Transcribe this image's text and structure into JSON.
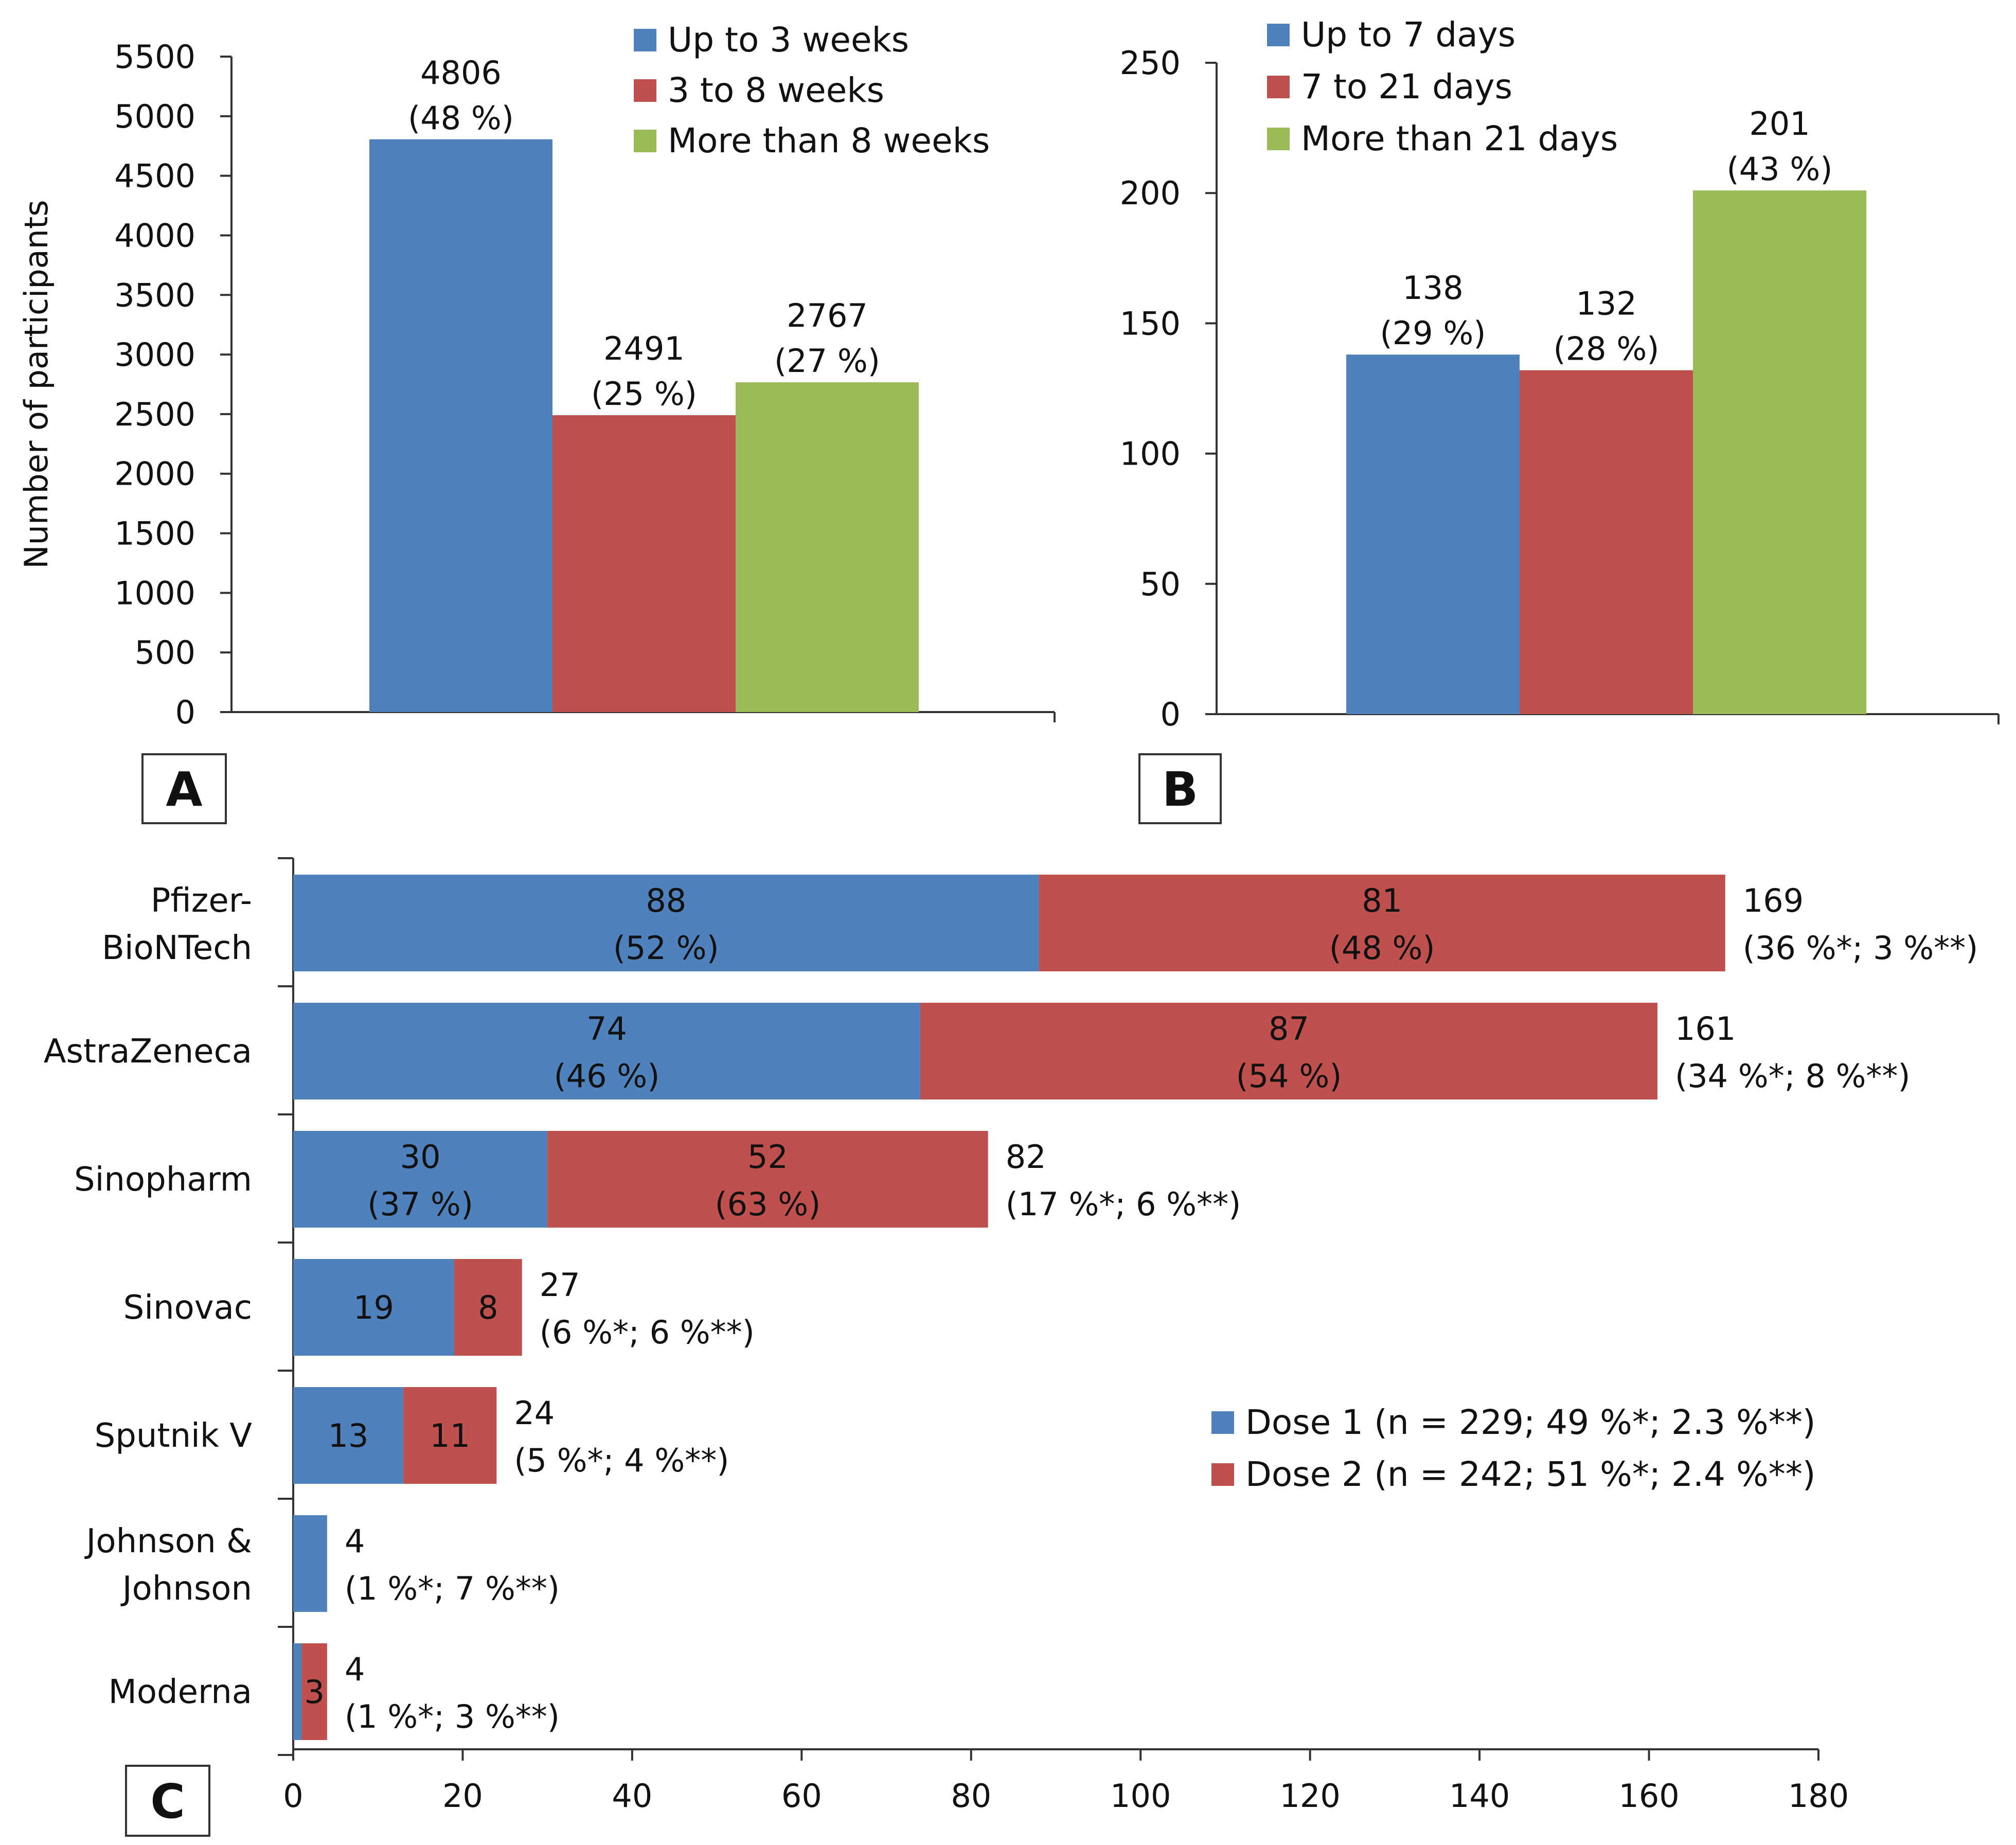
{
  "colors": {
    "blue": "#4f81bd",
    "red": "#c0504d",
    "green": "#9bbb59"
  },
  "chart_data": [
    {
      "panel": "A",
      "type": "bar",
      "ylabel": "Number of participants",
      "ylim": [
        0,
        5500
      ],
      "yticks": [
        "0",
        "500",
        "1000",
        "1500",
        "2000",
        "2500",
        "3000",
        "3500",
        "4000",
        "4500",
        "5000",
        "5500"
      ],
      "series": [
        {
          "name": "Up to 3 weeks",
          "value": 4806,
          "count_label": "4806",
          "pct_label": "(48 %)"
        },
        {
          "name": "3 to 8 weeks",
          "value": 2491,
          "count_label": "2491",
          "pct_label": "(25 %)"
        },
        {
          "name": "More than 8 weeks",
          "value": 2767,
          "count_label": "2767",
          "pct_label": "(27 %)"
        }
      ]
    },
    {
      "panel": "B",
      "type": "bar",
      "ylim": [
        0,
        250
      ],
      "yticks": [
        "0",
        "50",
        "100",
        "150",
        "200",
        "250"
      ],
      "series": [
        {
          "name": "Up to 7 days",
          "value": 138,
          "count_label": "138",
          "pct_label": "(29 %)"
        },
        {
          "name": "7 to 21 days",
          "value": 132,
          "count_label": "132",
          "pct_label": "(28 %)"
        },
        {
          "name": "More than 21 days",
          "value": 201,
          "count_label": "201",
          "pct_label": "(43 %)"
        }
      ]
    },
    {
      "panel": "C",
      "type": "bar",
      "orientation": "horizontal-stacked",
      "xlim": [
        0,
        180
      ],
      "xticks": [
        "0",
        "20",
        "40",
        "60",
        "80",
        "100",
        "120",
        "140",
        "160",
        "180"
      ],
      "series": [
        {
          "name": "Dose 1 (n = 229; 49 %*; 2.3 %**)"
        },
        {
          "name": "Dose 2 (n = 242; 51 %*; 2.4 %**)"
        }
      ],
      "categories": [
        {
          "name": [
            "Pfizer-",
            "BioNTech"
          ],
          "dose1": 88,
          "dose2": 81,
          "d1": [
            "88",
            "(52 %)"
          ],
          "d2": [
            "81",
            "(48 %)"
          ],
          "total": "169",
          "note": "(36 %*; 3 %**)"
        },
        {
          "name": [
            "AstraZeneca"
          ],
          "dose1": 74,
          "dose2": 87,
          "d1": [
            "74",
            "(46 %)"
          ],
          "d2": [
            "87",
            "(54 %)"
          ],
          "total": "161",
          "note": "(34 %*; 8 %**)"
        },
        {
          "name": [
            "Sinopharm"
          ],
          "dose1": 30,
          "dose2": 52,
          "d1": [
            "30",
            "(37 %)"
          ],
          "d2": [
            "52",
            "(63 %)"
          ],
          "total": "82",
          "note": "(17 %*; 6 %**)"
        },
        {
          "name": [
            "Sinovac"
          ],
          "dose1": 19,
          "dose2": 8,
          "d1": [
            "19"
          ],
          "d2": [
            "8"
          ],
          "total": "27",
          "note": "(6 %*; 6 %**)"
        },
        {
          "name": [
            "Sputnik V"
          ],
          "dose1": 13,
          "dose2": 11,
          "d1": [
            "13"
          ],
          "d2": [
            "11"
          ],
          "total": "24",
          "note": "(5 %*; 4 %**)"
        },
        {
          "name": [
            "Johnson &",
            "Johnson"
          ],
          "dose1": 4,
          "dose2": 0,
          "d1": [],
          "d2": [],
          "total": "4",
          "note": "(1 %*; 7 %**)"
        },
        {
          "name": [
            "Moderna"
          ],
          "dose1": 1,
          "dose2": 3,
          "d1": [],
          "d2": [
            "3"
          ],
          "total": "4",
          "note": "(1 %*; 3 %**)"
        }
      ]
    }
  ]
}
